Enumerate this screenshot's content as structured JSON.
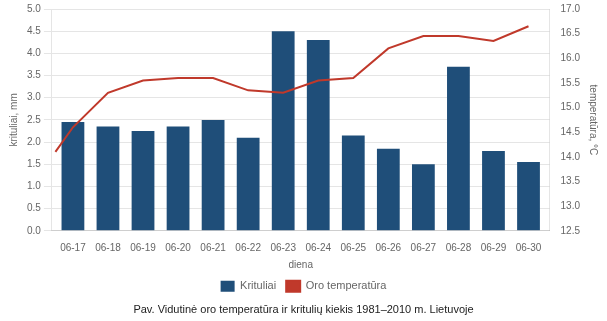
{
  "chart_data": {
    "type": "bar",
    "xlabel": "diena",
    "ylabel": "krituliai, mm",
    "y2label": "temperatūra, °C",
    "caption": "Pav. Vidutinė oro temperatūra ir kritulių kiekis 1981–2010 m. Lietuvoje",
    "xlim": [
      -0.6,
      13.6
    ],
    "xticks": [
      {
        "value": 0,
        "label": "06-17"
      },
      {
        "value": 1,
        "label": "06-18"
      },
      {
        "value": 2,
        "label": "06-19"
      },
      {
        "value": 3,
        "label": "06-20"
      },
      {
        "value": 4,
        "label": "06-21"
      },
      {
        "value": 5,
        "label": "06-22"
      },
      {
        "value": 6,
        "label": "06-23"
      },
      {
        "value": 7,
        "label": "06-24"
      },
      {
        "value": 8,
        "label": "06-25"
      },
      {
        "value": 9,
        "label": "06-26"
      },
      {
        "value": 10,
        "label": "06-27"
      },
      {
        "value": 11,
        "label": "06-28"
      },
      {
        "value": 12,
        "label": "06-29"
      },
      {
        "value": 13,
        "label": "06-30"
      }
    ],
    "ylim": [
      0.0,
      5.0
    ],
    "yticks": [
      {
        "value": 0,
        "label": "0.0"
      },
      0.5,
      {
        "value": 1,
        "label": "1.0"
      },
      1.5,
      {
        "value": 2,
        "label": "2.0"
      },
      2.5,
      {
        "value": 3,
        "label": "3.0"
      },
      3.5,
      {
        "value": 4,
        "label": "4.0"
      },
      4.5,
      {
        "value": 5,
        "label": "5.0"
      }
    ],
    "y2lim": [
      12.5,
      17.0
    ],
    "y2ticks": [
      12.5,
      {
        "value": 13,
        "label": "13.0"
      },
      13.5,
      {
        "value": 14,
        "label": "14.0"
      },
      14.5,
      {
        "value": 15,
        "label": "15.0"
      },
      15.5,
      {
        "value": 16,
        "label": "16.0"
      },
      16.5,
      {
        "value": 17,
        "label": "17.0"
      }
    ],
    "grid": true,
    "legend": "bottom",
    "series": [
      {
        "name": "Krituliai",
        "type": "bar",
        "color": "#1f4e79",
        "x": [
          0,
          1,
          2,
          3,
          4,
          5,
          6,
          7,
          8,
          9,
          10,
          11,
          12,
          13
        ],
        "values": [
          2.45,
          2.35,
          2.25,
          2.35,
          2.5,
          2.1,
          4.5,
          4.3,
          2.15,
          1.85,
          1.5,
          3.7,
          1.8,
          1.55
        ]
      },
      {
        "name": "Oro temperatūra",
        "type": "line",
        "color": "#c0392b",
        "axis": "y2",
        "marker": "none",
        "x": [
          -0.5,
          0,
          1,
          2,
          3,
          4,
          5,
          6,
          7,
          8,
          9,
          10,
          11,
          12,
          13
        ],
        "values": [
          14.1,
          14.6,
          15.3,
          15.55,
          15.6,
          15.6,
          15.35,
          15.3,
          15.55,
          15.6,
          16.2,
          16.45,
          16.45,
          16.35,
          16.65
        ]
      }
    ]
  }
}
